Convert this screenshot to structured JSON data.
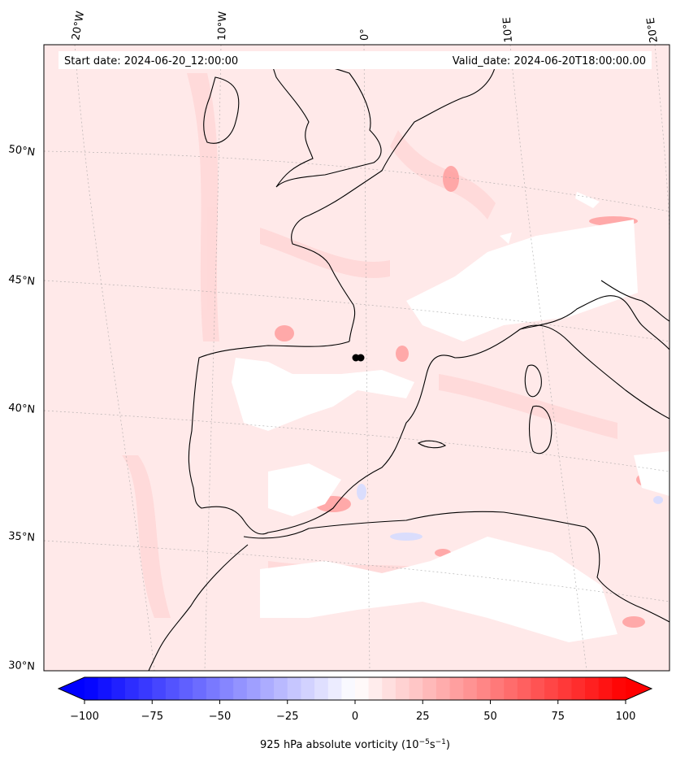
{
  "annotations": {
    "start_date": "Start date: 2024-06-20_12:00:00",
    "valid_date": "Valid_date: 2024-06-20T18:00:00.00"
  },
  "axes": {
    "lon_labels": [
      "20°W",
      "10°W",
      "0°",
      "10°E",
      "20°E"
    ],
    "lat_labels": [
      "50°N",
      "45°N",
      "40°N",
      "35°N",
      "30°N"
    ]
  },
  "colorbar": {
    "ticks": [
      -100,
      -75,
      -50,
      -25,
      0,
      25,
      50,
      75,
      100
    ],
    "tick_labels": [
      "−100",
      "−75",
      "−50",
      "−25",
      "0",
      "25",
      "50",
      "75",
      "100"
    ],
    "vmin": -100,
    "vmax": 100,
    "levels": 40,
    "extend": "both",
    "label_main": "925 hPa absolute vorticity (10",
    "label_exp1": "−5",
    "label_mid": "s",
    "label_exp2": "−1",
    "label_end": ")",
    "cmap": "bwr",
    "color_min": "#0000ff",
    "color_mid": "#ffffff",
    "color_max": "#ff0000"
  },
  "map": {
    "field_color_base": "#ffe6e6",
    "coastline_color": "#000000",
    "marker_color": "#000000"
  }
}
